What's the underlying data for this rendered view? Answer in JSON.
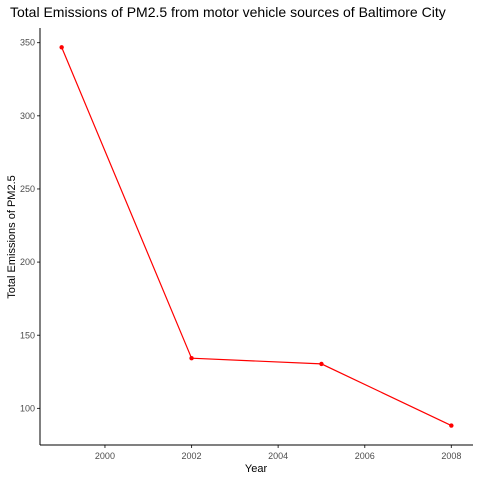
{
  "chart_data": {
    "type": "line",
    "title": "Total Emissions of PM2.5 from motor vehicle sources of Baltimore City",
    "xlabel": "Year",
    "ylabel": "Total Emissions of PM2.5",
    "x": [
      1999,
      2002,
      2005,
      2008
    ],
    "series": [
      {
        "values": [
          346.82,
          134.31,
          130.43,
          88.28
        ]
      }
    ],
    "xlim": [
      1998.5,
      2008.5
    ],
    "ylim": [
      75,
      360
    ],
    "xticks": [
      2000,
      2002,
      2004,
      2006,
      2008
    ],
    "xtick_labels": [
      "2000",
      "2002",
      "2004",
      "2006",
      "2008"
    ],
    "yticks": [
      100,
      150,
      200,
      250,
      300,
      350
    ],
    "ytick_labels": [
      "100",
      "150",
      "200",
      "250",
      "300",
      "350"
    ],
    "grid": false,
    "line_color": "#ff0000",
    "axis_color": "#000000",
    "tick_label_color": "#4d4d4d"
  }
}
